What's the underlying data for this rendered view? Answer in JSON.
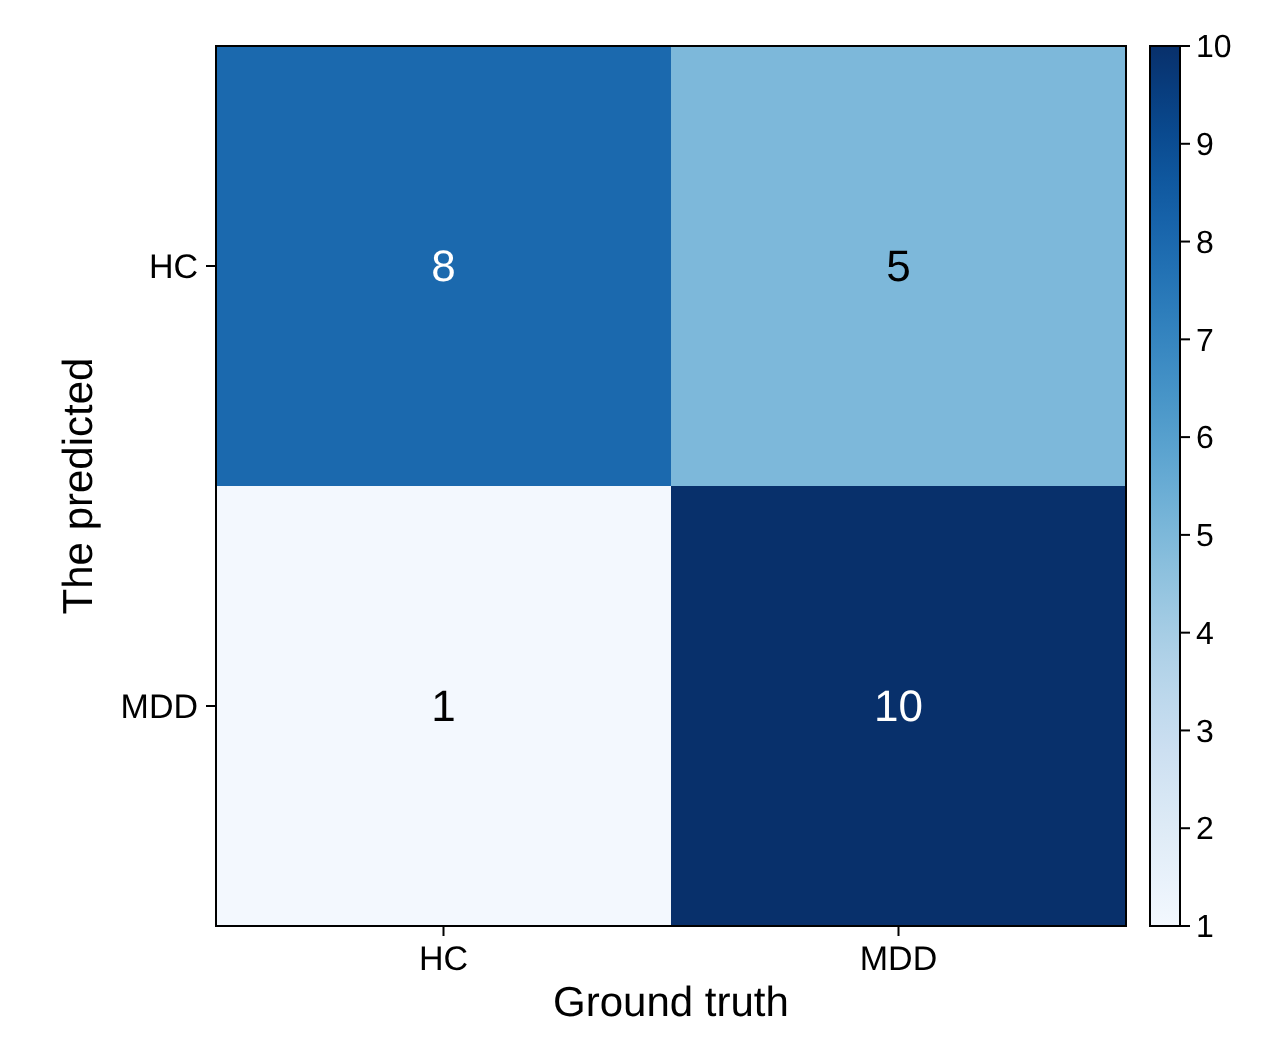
{
  "chart_data": {
    "type": "heatmap",
    "xlabel": "Ground truth",
    "ylabel": "The predicted",
    "categories": [
      "HC",
      "MDD"
    ],
    "y_categories": [
      "HC",
      "MDD"
    ],
    "cells": [
      [
        8,
        5
      ],
      [
        1,
        10
      ]
    ],
    "clim": [
      1,
      10
    ],
    "cticks": [
      1,
      2,
      3,
      4,
      5,
      6,
      7,
      8,
      9,
      10
    ],
    "data_labels": true
  }
}
